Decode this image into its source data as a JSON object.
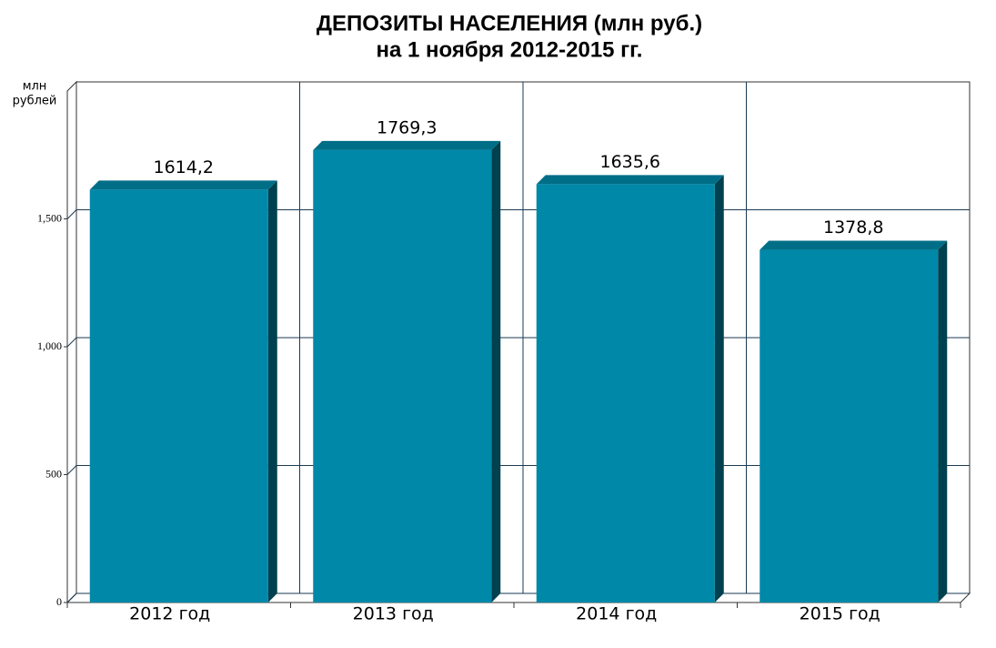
{
  "chart_data": {
    "type": "bar3d",
    "title": [
      "ДЕПОЗИТЫ НАСЕЛЕНИЯ (млн руб.)",
      "на 1 ноября 2012-2015 гг."
    ],
    "y_label": [
      "млн",
      "рублей"
    ],
    "categories": [
      "2012 год",
      "2013 год",
      "2014 год",
      "2015 год"
    ],
    "values": [
      1614.2,
      1769.3,
      1635.6,
      1378.8
    ],
    "value_labels": [
      "1614,2",
      "1769,3",
      "1635,6",
      "1378,8"
    ],
    "color": "#0088a8",
    "ylim": [
      0,
      2000
    ],
    "yticks": [
      0,
      500,
      {
        "value": 1000,
        "label": "1,000"
      },
      {
        "value": 1500,
        "label": "1,500"
      }
    ],
    "grid": true
  }
}
